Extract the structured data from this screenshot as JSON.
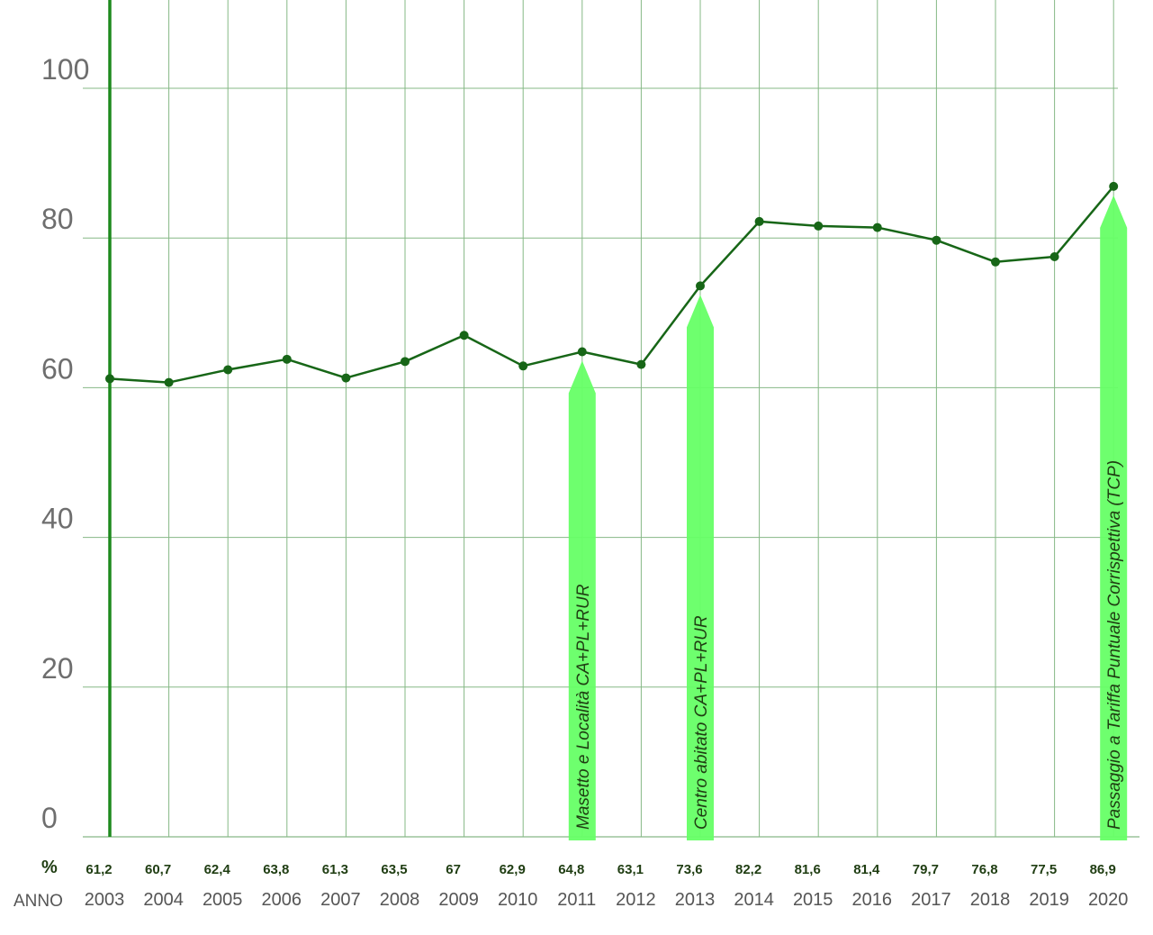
{
  "chart_data": {
    "type": "line",
    "x": [
      "2003",
      "2004",
      "2005",
      "2006",
      "2007",
      "2008",
      "2009",
      "2010",
      "2011",
      "2012",
      "2013",
      "2014",
      "2015",
      "2016",
      "2017",
      "2018",
      "2019",
      "2020"
    ],
    "series": [
      {
        "values": [
          61.2,
          60.7,
          62.4,
          63.8,
          61.3,
          63.5,
          67,
          62.9,
          64.8,
          63.1,
          73.6,
          82.2,
          81.6,
          81.4,
          79.7,
          76.8,
          77.5,
          86.9
        ]
      }
    ],
    "value_labels": [
      "61,2",
      "60,7",
      "62,4",
      "63,8",
      "61,3",
      "63,5",
      "67",
      "62,9",
      "64,8",
      "63,1",
      "73,6",
      "82,2",
      "81,6",
      "81,4",
      "79,7",
      "76,8",
      "77,5",
      "86,9"
    ],
    "y_ticks": [
      0,
      20,
      40,
      60,
      80,
      100
    ],
    "ylim": [
      0,
      112
    ],
    "grid": true,
    "row_labels": {
      "values": "%",
      "years": "ANNO"
    },
    "annotations": [
      {
        "year": "2011",
        "text": "Masetto e Località CA+PL+RUR"
      },
      {
        "year": "2013",
        "text": "Centro abitato CA+PL+RUR"
      },
      {
        "year": "2020",
        "text": "Passaggio a  Tariffa Puntuale Corrispettiva (TCP)"
      }
    ],
    "colors": {
      "line": "#176617",
      "point": "#176617",
      "grid": "#86b886",
      "axis": "#1e8a1e",
      "arrow": "#66ff66"
    }
  }
}
